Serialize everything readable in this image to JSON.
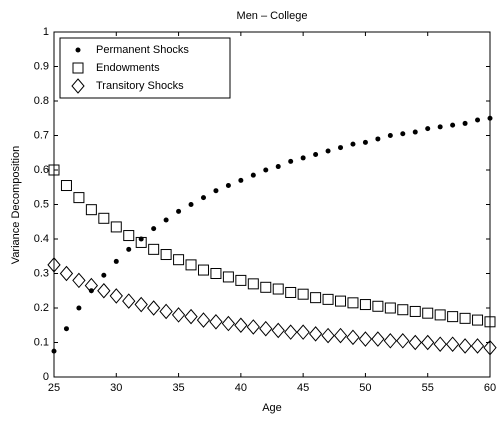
{
  "chart_data": {
    "type": "scatter",
    "title": "Men – College",
    "xlabel": "Age",
    "ylabel": "Variance Decomposition",
    "x": [
      25,
      26,
      27,
      28,
      29,
      30,
      31,
      32,
      33,
      34,
      35,
      36,
      37,
      38,
      39,
      40,
      41,
      42,
      43,
      44,
      45,
      46,
      47,
      48,
      49,
      50,
      51,
      52,
      53,
      54,
      55,
      56,
      57,
      58,
      59,
      60
    ],
    "series": [
      {
        "name": "Permanent Shocks",
        "color": "#000000",
        "marker": "dot",
        "values": [
          0.075,
          0.14,
          0.2,
          0.25,
          0.295,
          0.335,
          0.37,
          0.4,
          0.43,
          0.455,
          0.48,
          0.5,
          0.52,
          0.54,
          0.555,
          0.57,
          0.585,
          0.6,
          0.61,
          0.625,
          0.635,
          0.645,
          0.655,
          0.665,
          0.675,
          0.68,
          0.69,
          0.7,
          0.705,
          0.71,
          0.72,
          0.725,
          0.73,
          0.735,
          0.745,
          0.75
        ]
      },
      {
        "name": "Endowments",
        "color": "#000000",
        "marker": "square",
        "values": [
          0.6,
          0.555,
          0.52,
          0.485,
          0.46,
          0.435,
          0.41,
          0.39,
          0.37,
          0.355,
          0.34,
          0.325,
          0.31,
          0.3,
          0.29,
          0.28,
          0.27,
          0.26,
          0.255,
          0.245,
          0.24,
          0.23,
          0.225,
          0.22,
          0.215,
          0.21,
          0.205,
          0.2,
          0.195,
          0.19,
          0.185,
          0.18,
          0.175,
          0.17,
          0.165,
          0.16
        ]
      },
      {
        "name": "Transitory Shocks",
        "color": "#000000",
        "marker": "diamond",
        "values": [
          0.325,
          0.3,
          0.28,
          0.265,
          0.25,
          0.235,
          0.22,
          0.21,
          0.2,
          0.19,
          0.18,
          0.175,
          0.165,
          0.16,
          0.155,
          0.15,
          0.145,
          0.14,
          0.135,
          0.13,
          0.13,
          0.125,
          0.12,
          0.12,
          0.115,
          0.11,
          0.11,
          0.105,
          0.105,
          0.1,
          0.1,
          0.095,
          0.095,
          0.09,
          0.09,
          0.085
        ]
      }
    ],
    "xlim": [
      25,
      60
    ],
    "xticks": [
      25,
      30,
      35,
      40,
      45,
      50,
      55,
      60
    ],
    "ylim": [
      0,
      1
    ],
    "yticks": [
      0,
      0.1,
      0.2,
      0.3,
      0.4,
      0.5,
      0.6,
      0.7,
      0.8,
      0.9,
      1
    ],
    "grid": false,
    "legend": "upper left"
  }
}
